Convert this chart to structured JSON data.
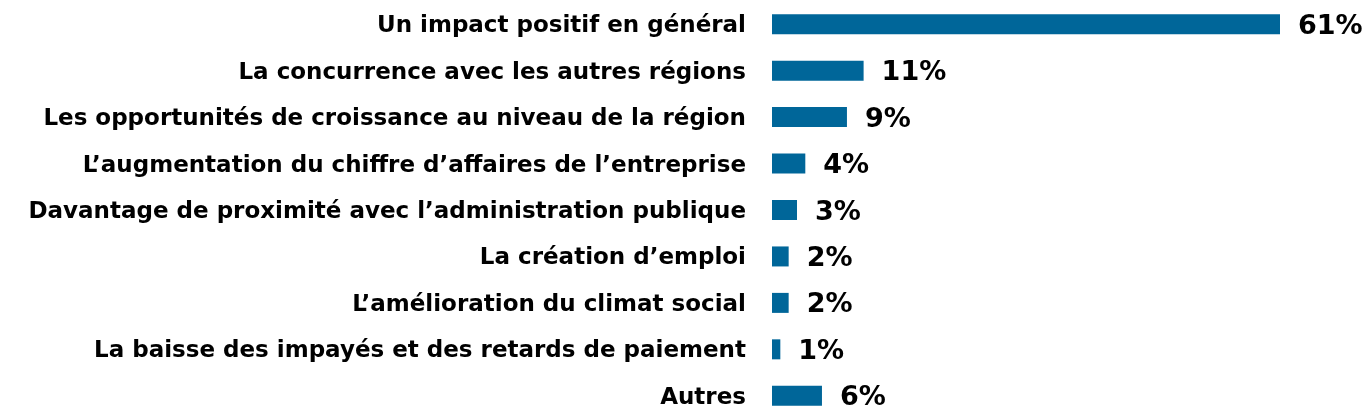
{
  "chart_data": {
    "type": "bar",
    "orientation": "horizontal",
    "categories": [
      "Un impact positif en général",
      "La concurrence avec les autres régions",
      "Les opportunités de croissance au niveau de la région",
      "L’augmentation du chiffre d’affaires de l’entreprise",
      "Davantage de proximité avec l’administration publique",
      "La création d’emploi",
      "L’amélioration du climat social",
      "La baisse des impayés et des retards de paiement",
      "Autres"
    ],
    "values": [
      61,
      11,
      9,
      4,
      3,
      2,
      2,
      1,
      6
    ],
    "value_labels": [
      "61%",
      "11%",
      "9%",
      "4%",
      "3%",
      "2%",
      "2%",
      "1%",
      "6%"
    ],
    "color": "#006699",
    "grid": false
  }
}
